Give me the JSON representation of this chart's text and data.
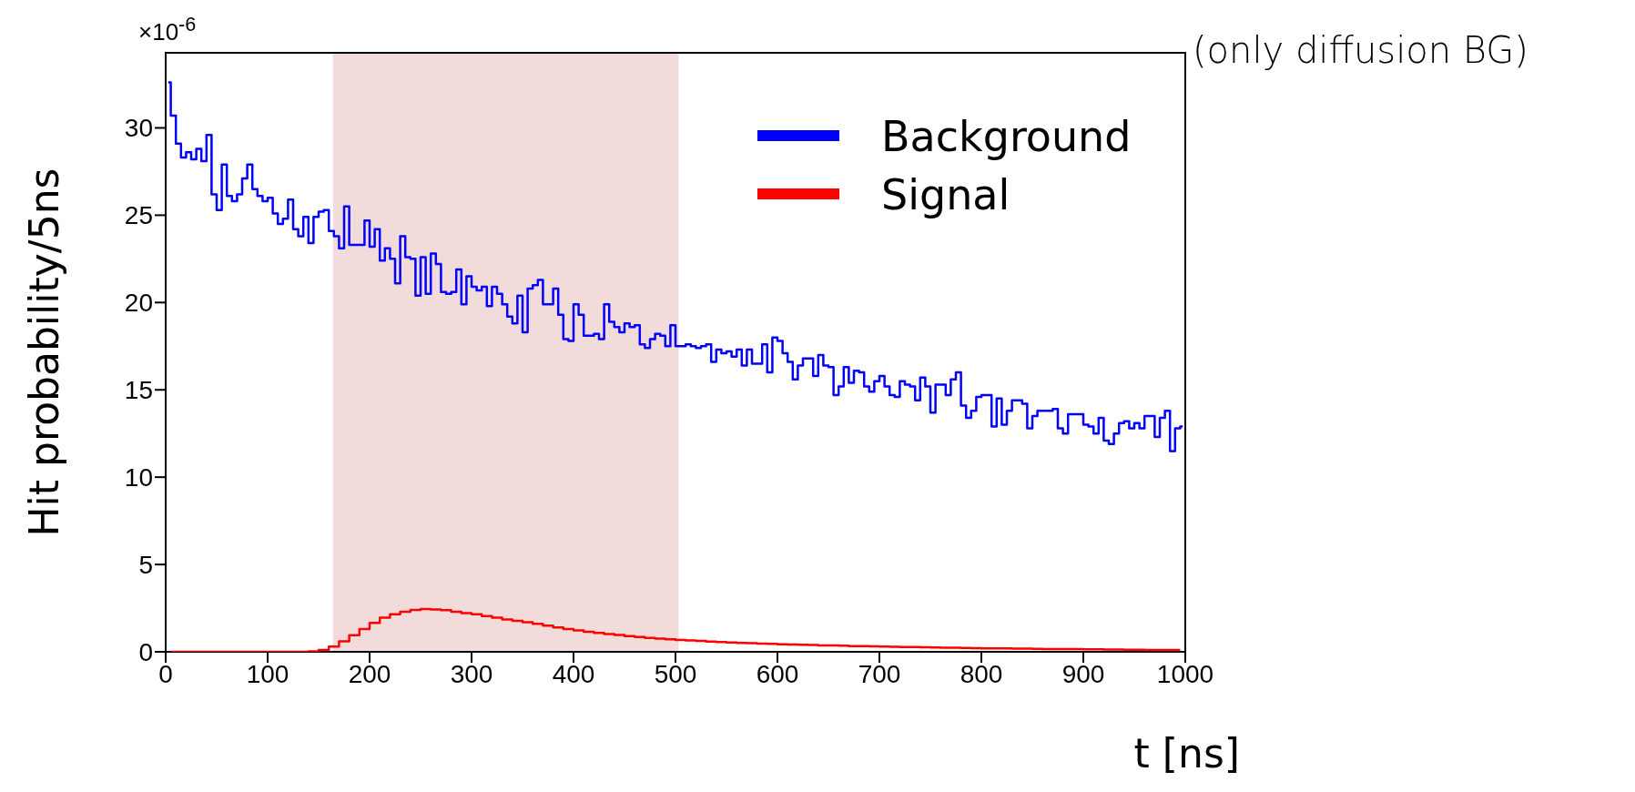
{
  "chart_data": {
    "type": "step",
    "ylabel": "Hit probability/5ns",
    "xlabel": "t [ns]",
    "annotations": [
      "×10$^{-6}$",
      "(only diffusion BG)"
    ],
    "xlim": [
      0,
      1000
    ],
    "xticks": [
      0,
      100,
      200,
      300,
      400,
      500,
      600,
      700,
      800,
      900,
      1000
    ],
    "ylim": [
      0,
      34.3
    ],
    "yticks": [
      0,
      5,
      10,
      15,
      20,
      25,
      30
    ],
    "legend": "top right",
    "line_style": "solid",
    "marker": "none",
    "bands": [
      {
        "axis": "x",
        "from": 164,
        "to": 503,
        "color": "#f2dcdb"
      }
    ],
    "series": [
      {
        "name": "Background",
        "color": "#0000ff",
        "x": [
          2.5,
          7.5,
          12.5,
          17.5,
          22.5,
          27.5,
          32.5,
          37.5,
          42.5,
          47.5,
          52.5,
          57.5,
          62.5,
          67.5,
          72.5,
          77.5,
          82.5,
          87.5,
          92.5,
          97.5,
          102.5,
          107.5,
          112.5,
          117.5,
          122.5,
          127.5,
          132.5,
          137.5,
          142.5,
          147.5,
          152.5,
          157.5,
          162.5,
          167.5,
          172.5,
          177.5,
          182.5,
          187.5,
          192.5,
          197.5,
          202.5,
          207.5,
          212.5,
          217.5,
          222.5,
          227.5,
          232.5,
          237.5,
          242.5,
          247.5,
          252.5,
          257.5,
          262.5,
          267.5,
          272.5,
          277.5,
          282.5,
          287.5,
          292.5,
          297.5,
          302.5,
          307.5,
          312.5,
          317.5,
          322.5,
          327.5,
          332.5,
          337.5,
          342.5,
          347.5,
          352.5,
          357.5,
          362.5,
          367.5,
          372.5,
          377.5,
          382.5,
          387.5,
          392.5,
          397.5,
          402.5,
          407.5,
          412.5,
          417.5,
          422.5,
          427.5,
          432.5,
          437.5,
          442.5,
          447.5,
          452.5,
          457.5,
          462.5,
          467.5,
          472.5,
          477.5,
          482.5,
          487.5,
          492.5,
          497.5,
          502.5,
          507.5,
          512.5,
          517.5,
          522.5,
          527.5,
          532.5,
          537.5,
          542.5,
          547.5,
          552.5,
          557.5,
          562.5,
          567.5,
          572.5,
          577.5,
          582.5,
          587.5,
          592.5,
          597.5,
          602.5,
          607.5,
          612.5,
          617.5,
          622.5,
          627.5,
          632.5,
          637.5,
          642.5,
          647.5,
          652.5,
          657.5,
          662.5,
          667.5,
          672.5,
          677.5,
          682.5,
          687.5,
          692.5,
          697.5,
          702.5,
          707.5,
          712.5,
          717.5,
          722.5,
          727.5,
          732.5,
          737.5,
          742.5,
          747.5,
          752.5,
          757.5,
          762.5,
          767.5,
          772.5,
          777.5,
          782.5,
          787.5,
          792.5,
          797.5,
          802.5,
          807.5,
          812.5,
          817.5,
          822.5,
          827.5,
          832.5,
          837.5,
          842.5,
          847.5,
          852.5,
          857.5,
          862.5,
          867.5,
          872.5,
          877.5,
          882.5,
          887.5,
          892.5,
          897.5,
          902.5,
          907.5,
          912.5,
          917.5,
          922.5,
          927.5,
          932.5,
          937.5,
          942.5,
          947.5,
          952.5,
          957.5,
          962.5,
          967.5,
          972.5,
          977.5,
          982.5,
          987.5,
          992.5,
          997.5
        ],
        "values": [
          32.6,
          30.7,
          29.1,
          28.3,
          28.6,
          28.2,
          28.8,
          28.1,
          29.6,
          26.2,
          25.3,
          27.9,
          26.1,
          25.8,
          26.2,
          27.1,
          27.9,
          26.5,
          26.1,
          25.8,
          26.0,
          25.1,
          24.5,
          24.8,
          25.9,
          24.2,
          23.8,
          24.9,
          23.4,
          24.9,
          25.2,
          25.3,
          24.1,
          23.8,
          23.1,
          25.5,
          23.3,
          23.3,
          23.3,
          24.7,
          23.2,
          24.2,
          22.4,
          23.1,
          22.5,
          21.1,
          23.8,
          22.6,
          22.5,
          20.4,
          22.6,
          20.5,
          22.8,
          22.2,
          20.6,
          20.5,
          20.6,
          21.9,
          19.9,
          21.5,
          20.9,
          20.7,
          20.9,
          19.8,
          20.9,
          20.5,
          19.9,
          19.2,
          18.8,
          20.4,
          18.3,
          20.8,
          21.0,
          21.3,
          19.9,
          19.9,
          20.8,
          19.3,
          17.9,
          17.8,
          19.9,
          19.3,
          18.1,
          18.1,
          18.2,
          17.9,
          19.9,
          18.9,
          18.6,
          18.3,
          18.8,
          18.6,
          18.7,
          17.6,
          17.4,
          17.9,
          18.2,
          18.1,
          17.5,
          18.7,
          17.5,
          17.5,
          17.6,
          17.5,
          17.4,
          17.5,
          17.6,
          16.6,
          17.3,
          17.1,
          17.2,
          16.9,
          17.3,
          16.4,
          17.3,
          16.5,
          16.5,
          17.6,
          16.0,
          18.0,
          17.8,
          17.1,
          16.6,
          15.6,
          16.4,
          16.8,
          16.8,
          15.8,
          17.0,
          16.4,
          16.3,
          14.7,
          15.2,
          16.3,
          15.4,
          16.1,
          16.0,
          15.2,
          14.9,
          15.5,
          15.8,
          15.2,
          14.7,
          14.6,
          15.5,
          15.3,
          15.2,
          14.4,
          15.7,
          15.2,
          13.7,
          15.3,
          15.3,
          14.7,
          15.6,
          16.0,
          14.1,
          13.4,
          13.8,
          14.6,
          14.7,
          14.7,
          12.9,
          14.5,
          13.0,
          13.8,
          14.4,
          14.4,
          14.2,
          12.8,
          13.5,
          13.8,
          13.8,
          13.8,
          13.9,
          12.8,
          12.5,
          13.6,
          13.6,
          13.6,
          13.0,
          12.9,
          12.5,
          13.4,
          12.1,
          11.9,
          12.5,
          13.1,
          13.2,
          12.8,
          13.1,
          12.8,
          13.5,
          13.5,
          12.3,
          13.4,
          13.8,
          11.5,
          12.8,
          12.9
        ]
      },
      {
        "name": "Signal",
        "color": "#ff0000",
        "x": [
          5,
          15,
          25,
          35,
          45,
          55,
          65,
          75,
          85,
          95,
          105,
          115,
          125,
          135,
          145,
          155,
          165,
          175,
          185,
          195,
          205,
          215,
          225,
          235,
          245,
          255,
          265,
          275,
          285,
          295,
          305,
          315,
          325,
          335,
          345,
          355,
          365,
          375,
          385,
          395,
          405,
          415,
          425,
          435,
          445,
          455,
          465,
          475,
          485,
          495,
          505,
          515,
          525,
          535,
          545,
          555,
          565,
          575,
          585,
          595,
          605,
          615,
          625,
          635,
          645,
          655,
          665,
          675,
          685,
          695,
          705,
          715,
          725,
          735,
          745,
          755,
          765,
          775,
          785,
          795,
          805,
          815,
          825,
          835,
          845,
          855,
          865,
          875,
          885,
          895,
          905,
          915,
          925,
          935,
          945,
          955,
          965,
          975,
          985,
          995
        ],
        "values": [
          0,
          0,
          0,
          0,
          0,
          0,
          0,
          0,
          0,
          0,
          0,
          0,
          0,
          0,
          0.03,
          0.1,
          0.3,
          0.6,
          0.95,
          1.3,
          1.65,
          1.95,
          2.15,
          2.3,
          2.4,
          2.45,
          2.42,
          2.38,
          2.3,
          2.22,
          2.15,
          2.05,
          1.95,
          1.85,
          1.77,
          1.7,
          1.6,
          1.5,
          1.4,
          1.3,
          1.22,
          1.15,
          1.08,
          1.02,
          0.96,
          0.9,
          0.85,
          0.8,
          0.76,
          0.72,
          0.68,
          0.65,
          0.62,
          0.59,
          0.56,
          0.54,
          0.51,
          0.49,
          0.47,
          0.45,
          0.43,
          0.42,
          0.4,
          0.39,
          0.37,
          0.36,
          0.35,
          0.33,
          0.32,
          0.31,
          0.3,
          0.29,
          0.28,
          0.27,
          0.26,
          0.25,
          0.24,
          0.23,
          0.22,
          0.21,
          0.2,
          0.2,
          0.19,
          0.18,
          0.18,
          0.17,
          0.16,
          0.16,
          0.15,
          0.15,
          0.14,
          0.14,
          0.13,
          0.13,
          0.12,
          0.12,
          0.11,
          0.11,
          0.1,
          0.1
        ]
      }
    ]
  }
}
